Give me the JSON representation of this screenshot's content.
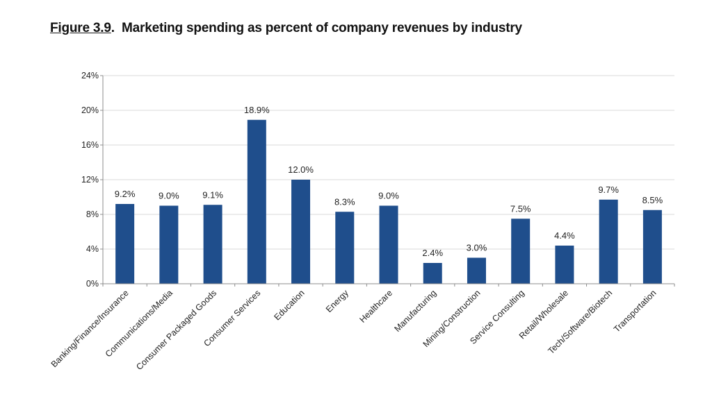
{
  "figure_label": "Figure 3.9",
  "title_separator": ".",
  "title_text": "Marketing spending as percent of company revenues by industry",
  "colors": {
    "bar": "#1F4E8C",
    "grid": "#D9D9D9",
    "axis": "#8C8C8C"
  },
  "chart_data": {
    "type": "bar",
    "title": "Marketing spending as percent of company revenues by industry",
    "xlabel": "",
    "ylabel": "",
    "categories": [
      "Banking/Finance/Insurance",
      "Communications/Media",
      "Consumer Packaged Goods",
      "Consumer Services",
      "Education",
      "Energy",
      "Healthcare",
      "Manufacturing",
      "Mining/Construction",
      "Service Consulting",
      "Retail/Wholesale",
      "Tech/Software/Biotech",
      "Transportation"
    ],
    "values": [
      9.2,
      9.0,
      9.1,
      18.9,
      12.0,
      8.3,
      9.0,
      2.4,
      3.0,
      7.5,
      4.4,
      9.7,
      8.5
    ],
    "data_labels": [
      "9.2%",
      "9.0%",
      "9.1%",
      "18.9%",
      "12.0%",
      "8.3%",
      "9.0%",
      "2.4%",
      "3.0%",
      "7.5%",
      "4.4%",
      "9.7%",
      "8.5%"
    ],
    "ylim": [
      0,
      24
    ],
    "yticks": [
      0,
      4,
      8,
      12,
      16,
      20,
      24
    ],
    "ytick_labels": [
      "0%",
      "4%",
      "8%",
      "12%",
      "16%",
      "20%",
      "24%"
    ],
    "grid": true,
    "legend": "none"
  }
}
